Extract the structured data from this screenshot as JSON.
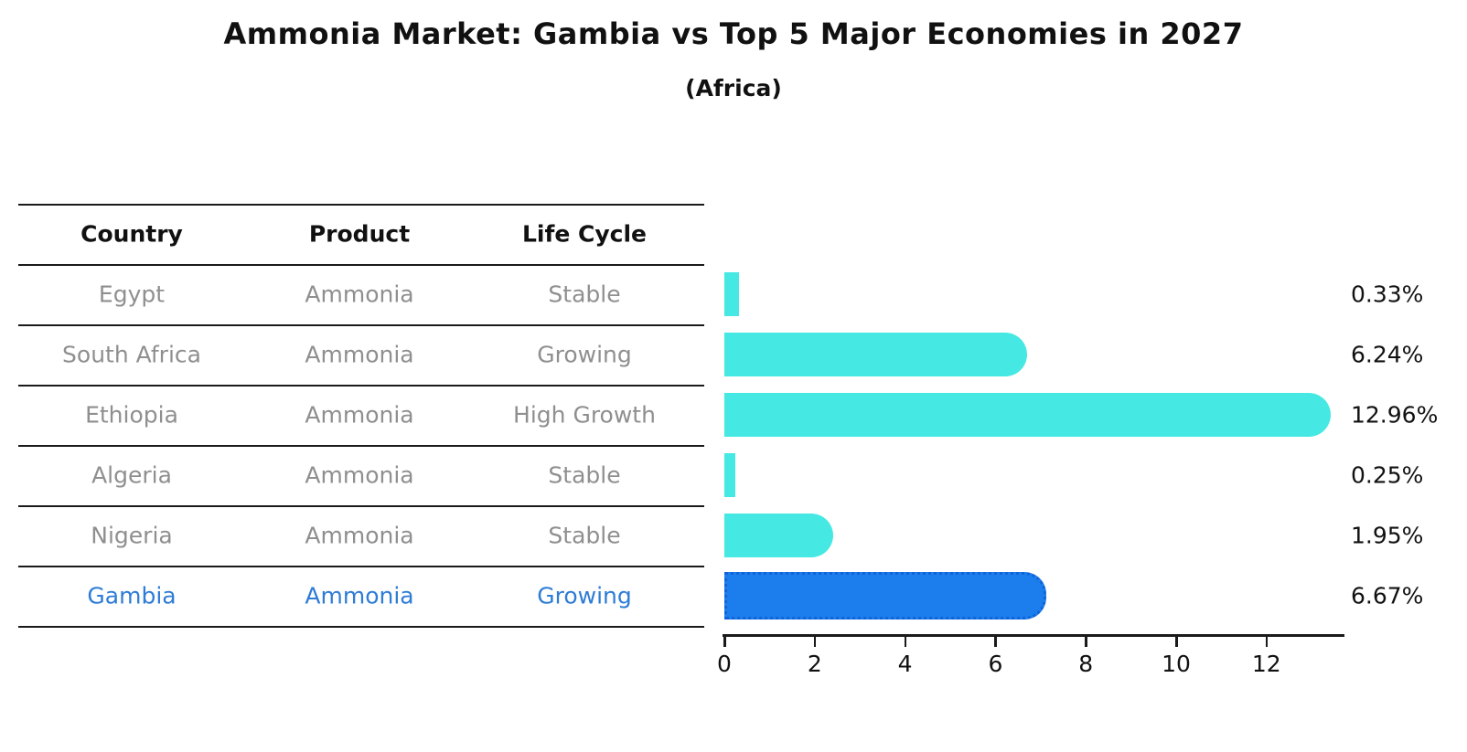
{
  "title": "Ammonia Market: Gambia vs Top 5 Major Economies in 2027",
  "subtitle": "(Africa)",
  "table": {
    "headers": [
      "Country",
      "Product",
      "Life Cycle"
    ],
    "rows": [
      {
        "country": "Egypt",
        "product": "Ammonia",
        "life_cycle": "Stable",
        "highlight": false
      },
      {
        "country": "South Africa",
        "product": "Ammonia",
        "life_cycle": "Growing",
        "highlight": false
      },
      {
        "country": "Ethiopia",
        "product": "Ammonia",
        "life_cycle": "High Growth",
        "highlight": false
      },
      {
        "country": "Algeria",
        "product": "Ammonia",
        "life_cycle": "Stable",
        "highlight": false
      },
      {
        "country": "Nigeria",
        "product": "Ammonia",
        "life_cycle": "Stable",
        "highlight": false
      },
      {
        "country": "Gambia",
        "product": "Ammonia",
        "life_cycle": "Growing",
        "highlight": true
      }
    ]
  },
  "chart_data": {
    "type": "bar",
    "orientation": "horizontal",
    "title": "Ammonia Market: Gambia vs Top 5 Major Economies in 2027",
    "subtitle": "(Africa)",
    "categories": [
      "Egypt",
      "South Africa",
      "Ethiopia",
      "Algeria",
      "Nigeria",
      "Gambia"
    ],
    "values": [
      0.33,
      6.24,
      12.96,
      0.25,
      1.95,
      6.67
    ],
    "value_labels": [
      "0.33%",
      "6.24%",
      "12.96%",
      "0.25%",
      "1.95%",
      "6.67%"
    ],
    "highlight_index": 5,
    "x_ticks": [
      0,
      2,
      4,
      6,
      8,
      10,
      12
    ],
    "xlim": [
      0,
      13.7
    ],
    "grid": false,
    "legend": "none",
    "colors": {
      "bar_default": "#45E8E2",
      "bar_highlight": "#1B7EEC",
      "bar_highlight_border": "#1263D9",
      "table_body_text": "#8f8f8f",
      "highlight_text": "#2e7cd6",
      "axis_and_text": "#111111"
    }
  }
}
